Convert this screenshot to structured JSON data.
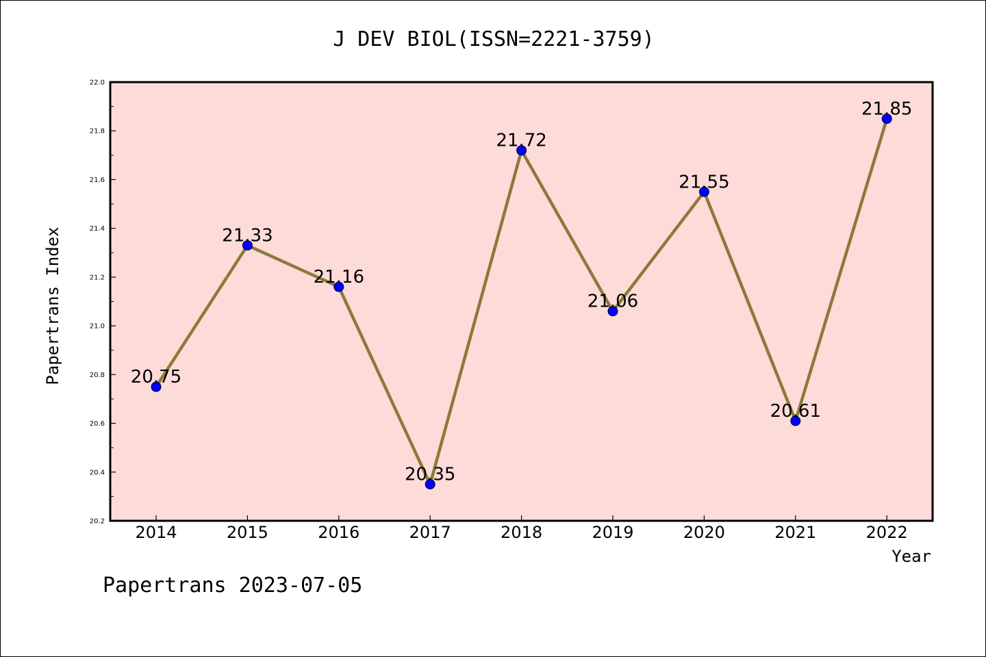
{
  "chart_data": {
    "type": "line",
    "title": "J DEV BIOL(ISSN=2221-3759)",
    "xlabel": "Year",
    "ylabel": "Papertrans Index",
    "categories": [
      "2014",
      "2015",
      "2016",
      "2017",
      "2018",
      "2019",
      "2020",
      "2021",
      "2022"
    ],
    "series": [
      {
        "values": [
          20.75,
          21.33,
          21.16,
          20.35,
          21.72,
          21.06,
          21.55,
          20.61,
          21.85
        ],
        "data_labels": [
          "20.75",
          "21.33",
          "21.16",
          "20.35",
          "21.72",
          "21.06",
          "21.55",
          "20.61",
          "21.85"
        ],
        "line_color": "#8b7a3a",
        "marker_color": "#0000ff"
      }
    ],
    "ylim": [
      20.2,
      22.0
    ],
    "y_ticks": [
      "20.2",
      "20.4",
      "20.6",
      "20.8",
      "21.0",
      "21.2",
      "21.4",
      "21.6",
      "21.8",
      "22.0"
    ],
    "grid": false,
    "plot_background": "#fddbd8"
  },
  "footer": {
    "text": "Papertrans 2023-07-05"
  }
}
